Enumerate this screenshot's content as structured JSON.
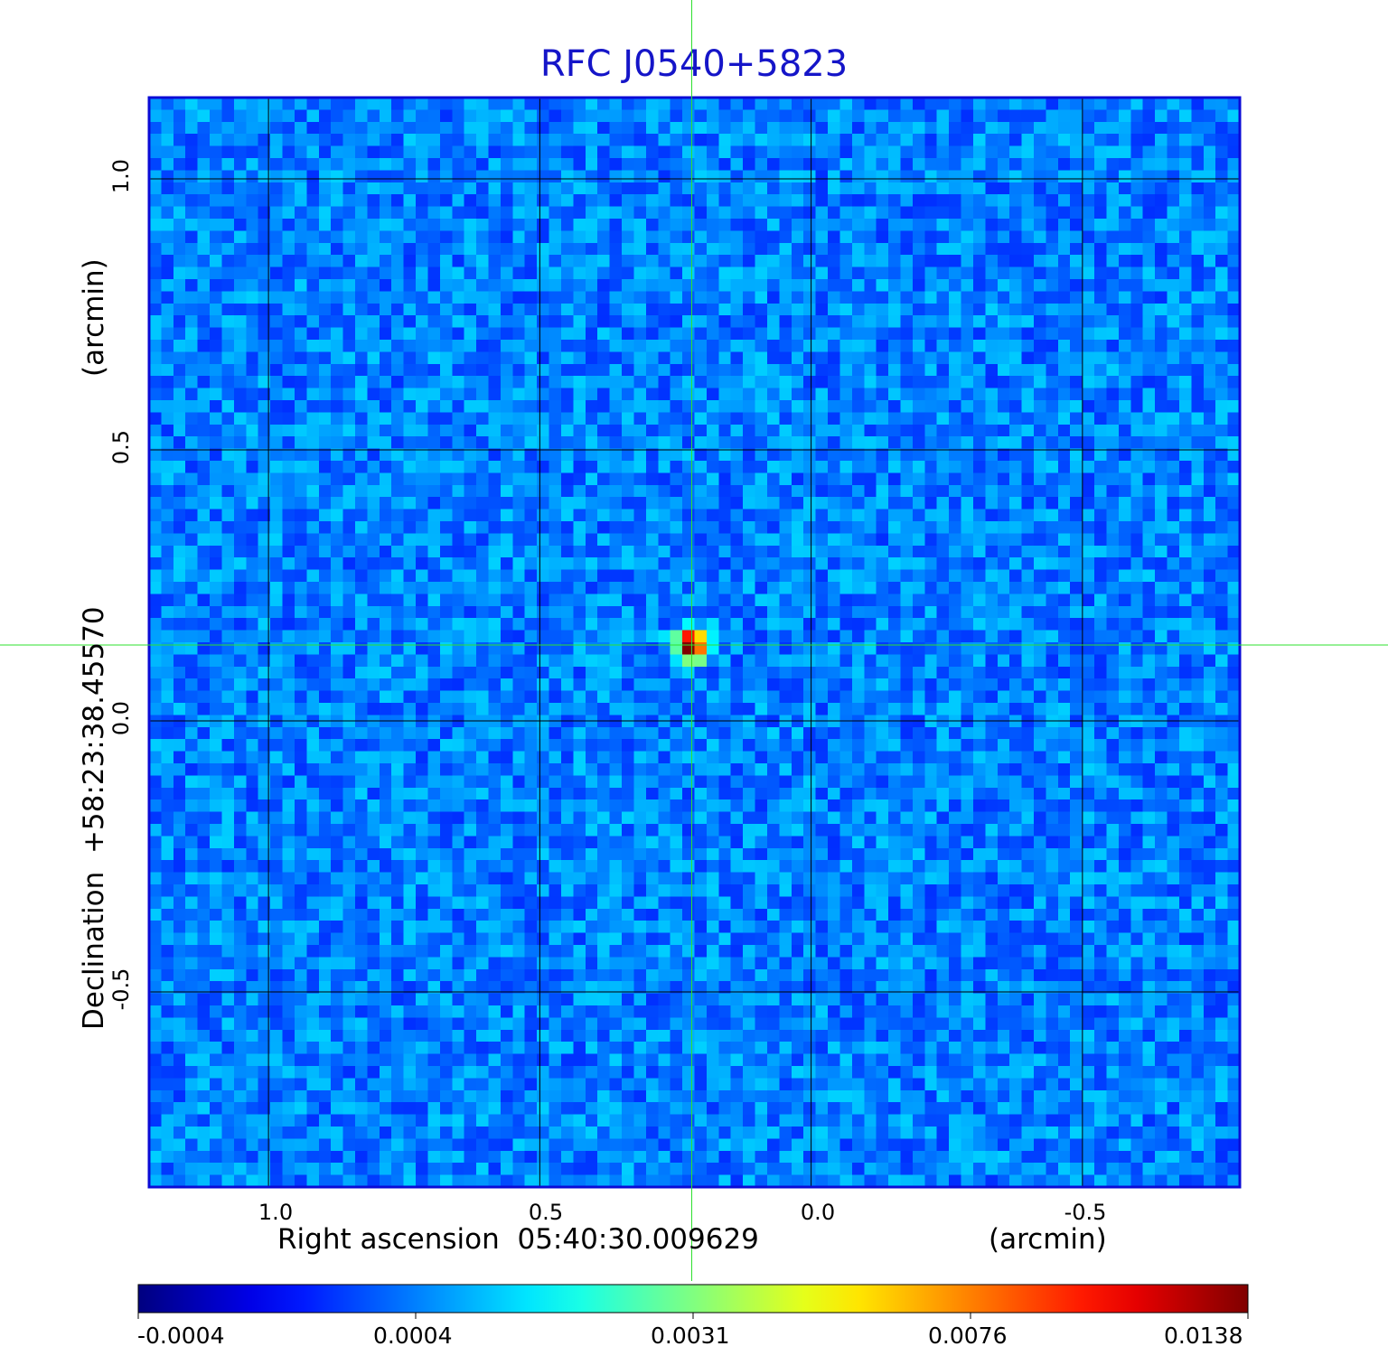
{
  "chart_data": {
    "type": "heatmap",
    "title": "RFC J0540+5823",
    "xlabel": "Right ascension  05:40:30.009629",
    "xunit": "(arcmin)",
    "ylabel": "Declination  +58:23:38.45570",
    "yunit": "(arcmin)",
    "x_ticks": [
      1.0,
      0.5,
      0.0,
      -0.5
    ],
    "x_tick_labels": [
      "1.0",
      "0.5",
      "0.0",
      "-0.5"
    ],
    "y_ticks": [
      1.0,
      0.5,
      0.0,
      -0.5
    ],
    "y_tick_labels": [
      "1.0",
      "0.5",
      "0.0",
      "-0.5"
    ],
    "xlim": [
      1.22,
      -0.79
    ],
    "ylim": [
      -0.86,
      1.15
    ],
    "grid": true,
    "colormap": "jet",
    "colorbar_ticks": [
      "-0.0004",
      "0.0004",
      "0.0031",
      "0.0076",
      "0.0138"
    ],
    "colorbar_range": [
      -0.0004,
      0.0138
    ],
    "source_peak": {
      "x": 0.22,
      "y": 0.14,
      "value": 0.0138
    },
    "background_level": 0.0002,
    "crosshair": {
      "x": 0.22,
      "y": 0.14
    }
  },
  "colors": {
    "title": "#1515c8",
    "frame": "#0b0bd6",
    "crosshair": "#2ee02e",
    "grid": "#000000"
  }
}
